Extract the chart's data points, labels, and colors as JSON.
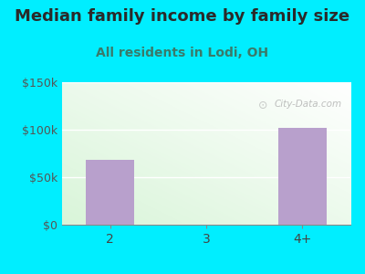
{
  "title": "Median family income by family size",
  "subtitle": "All residents in Lodi, OH",
  "categories": [
    "2",
    "3",
    "4+"
  ],
  "values": [
    68000,
    0,
    102000
  ],
  "bar_color": "#b8a0cc",
  "background_outer": "#00eeff",
  "title_color": "#2a2a2a",
  "subtitle_color": "#3a7a6a",
  "ylim": [
    0,
    150000
  ],
  "yticks": [
    0,
    50000,
    100000,
    150000
  ],
  "ytick_labels": [
    "$0",
    "$50k",
    "$100k",
    "$150k"
  ],
  "title_fontsize": 13,
  "subtitle_fontsize": 10,
  "watermark": "City-Data.com",
  "plot_bg_top": "#f5fff5",
  "plot_bg_bottom": "#d8f0d8"
}
